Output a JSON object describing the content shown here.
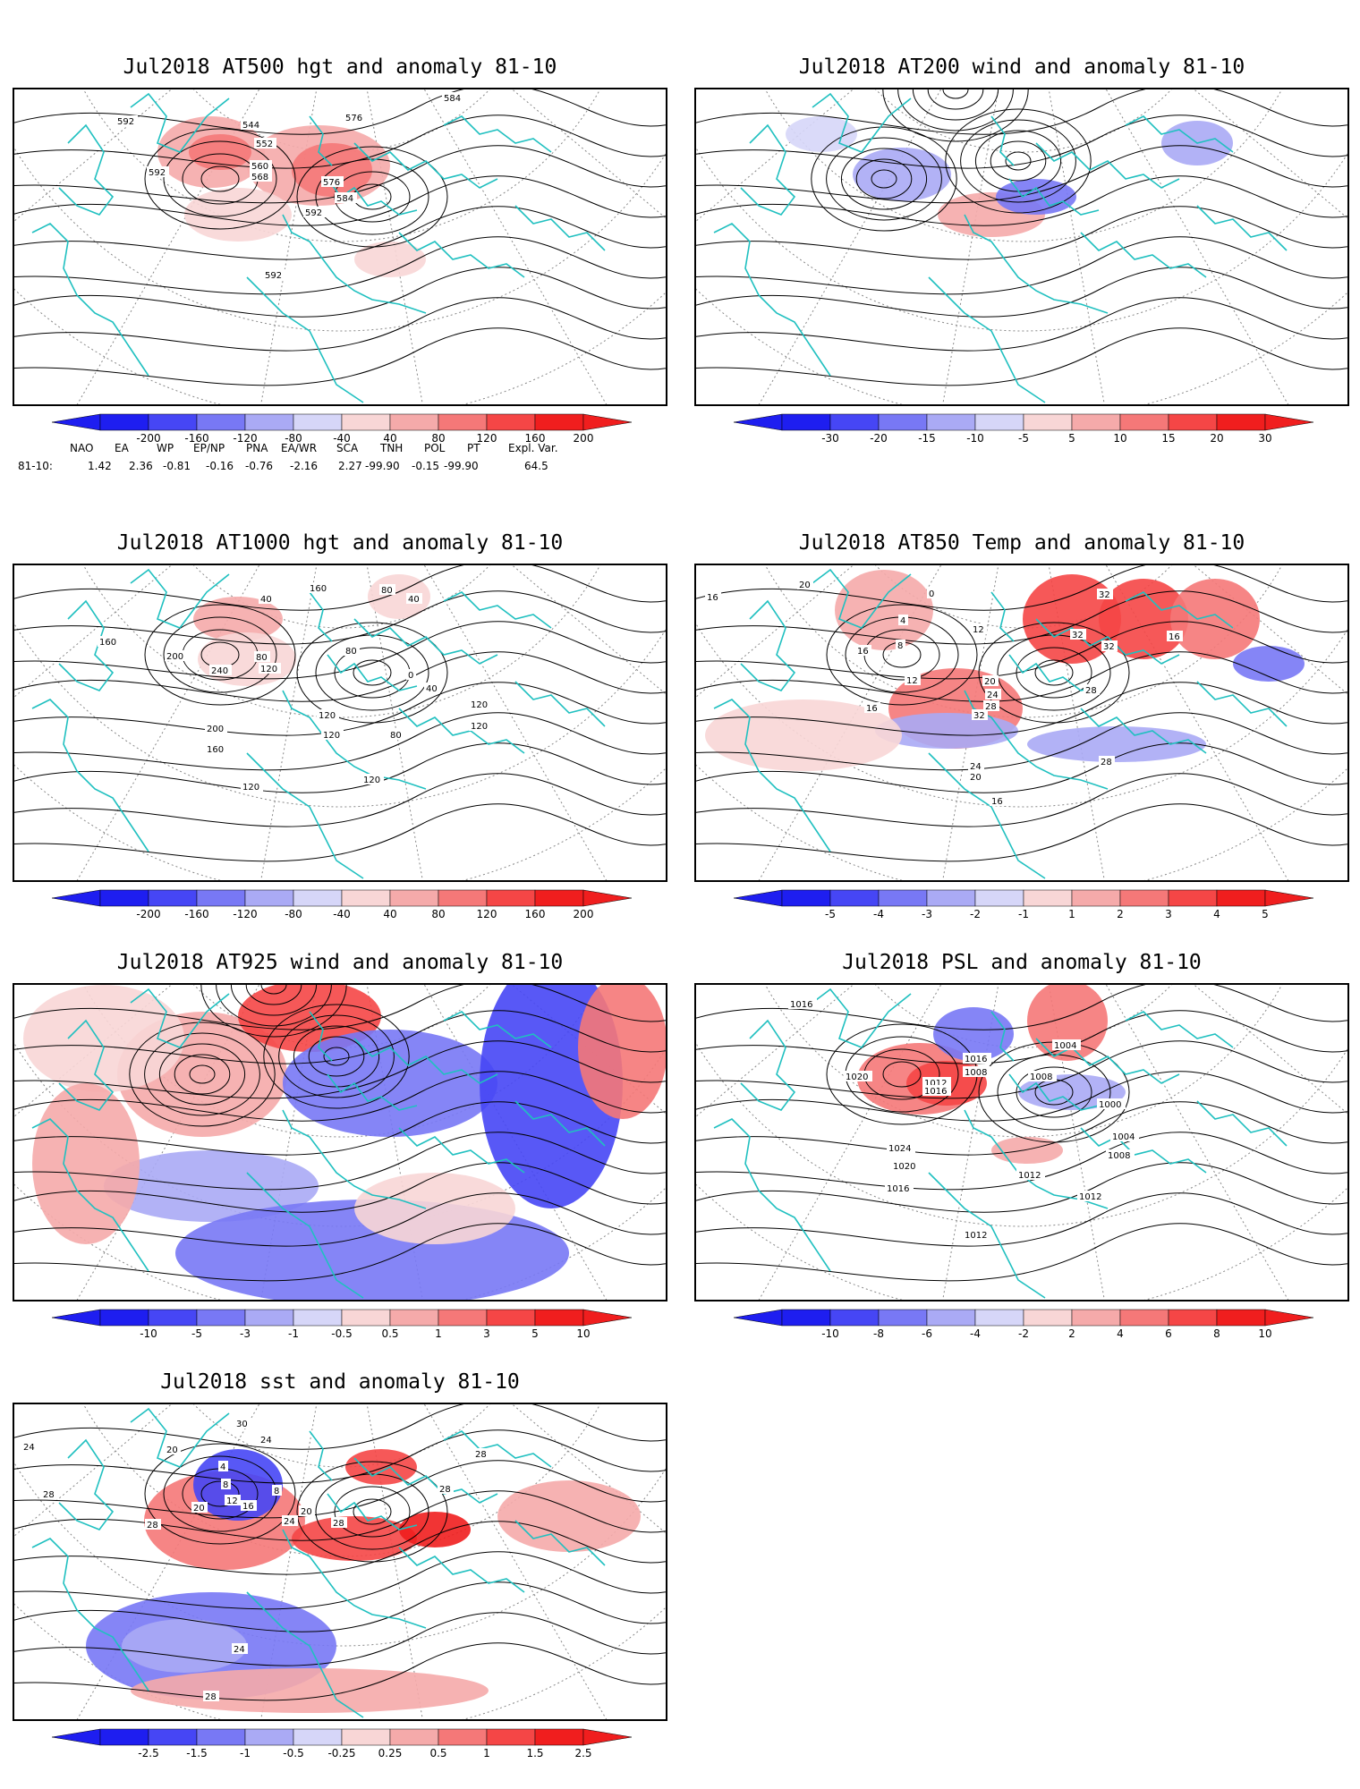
{
  "colors": {
    "coast": "#20c0c0",
    "contour": "#000000",
    "grid": "#888888",
    "scale_neg": [
      "#1e1ef0",
      "#4646f5",
      "#7878f5",
      "#aaaaf5",
      "#d6d6f8"
    ],
    "scale_pos": [
      "#f8d6d6",
      "#f5aaaa",
      "#f57878",
      "#f54646",
      "#f01e1e"
    ]
  },
  "panels": [
    {
      "id": "at500",
      "title": "Jul2018 AT500 hgt and anomaly 81-10",
      "ticks": [
        "-200",
        "-160",
        "-120",
        "-80",
        "-40",
        "40",
        "80",
        "120",
        "160",
        "200"
      ],
      "contour_labels": [
        "584",
        "592",
        "544",
        "576",
        "552",
        "560",
        "568",
        "592",
        "576",
        "584",
        "592",
        "592"
      ]
    },
    {
      "id": "at200",
      "title": "Jul2018 AT200 wind and anomaly 81-10",
      "ticks": [
        "-30",
        "-20",
        "-15",
        "-10",
        "-5",
        "5",
        "10",
        "15",
        "20",
        "30"
      ],
      "contour_labels": []
    },
    {
      "id": "at1000",
      "title": "Jul2018 AT1000 hgt and anomaly 81-10",
      "ticks": [
        "-200",
        "-160",
        "-120",
        "-80",
        "-40",
        "40",
        "80",
        "120",
        "160",
        "200"
      ],
      "contour_labels": [
        "40",
        "160",
        "80",
        "40",
        "160",
        "200",
        "240",
        "80",
        "120",
        "80",
        "0",
        "120",
        "40",
        "120",
        "120",
        "200",
        "120",
        "160",
        "80",
        "120",
        "120"
      ]
    },
    {
      "id": "at850",
      "title": "Jul2018 AT850 Temp and anomaly 81-10",
      "ticks": [
        "-5",
        "-4",
        "-3",
        "-2",
        "-1",
        "1",
        "2",
        "3",
        "4",
        "5"
      ],
      "contour_labels": [
        "16",
        "20",
        "0",
        "32",
        "4",
        "12",
        "8",
        "32",
        "32",
        "16",
        "16",
        "12",
        "20",
        "24",
        "28",
        "28",
        "32",
        "16",
        "24",
        "20",
        "28",
        "16"
      ]
    },
    {
      "id": "at925",
      "title": "Jul2018 AT925 wind and anomaly 81-10",
      "ticks": [
        "-10",
        "-5",
        "-3",
        "-1",
        "-0.5",
        "0.5",
        "1",
        "3",
        "5",
        "10"
      ],
      "contour_labels": []
    },
    {
      "id": "psl",
      "title": "Jul2018 PSL and anomaly 81-10",
      "ticks": [
        "-10",
        "-8",
        "-6",
        "-4",
        "-2",
        "2",
        "4",
        "6",
        "8",
        "10"
      ],
      "contour_labels": [
        "1016",
        "1004",
        "1016",
        "1008",
        "1020",
        "1012",
        "1016",
        "1008",
        "1000",
        "1004",
        "1024",
        "1008",
        "1020",
        "1012",
        "1016",
        "1012",
        "1012"
      ]
    },
    {
      "id": "sst",
      "title": "Jul2018 sst and anomaly 81-10",
      "ticks": [
        "-2.5",
        "-1.5",
        "-1",
        "-0.5",
        "-0.25",
        "0.25",
        "0.5",
        "1",
        "1.5",
        "2.5"
      ],
      "contour_labels": [
        "30",
        "24",
        "28",
        "24",
        "20",
        "4",
        "28",
        "8",
        "28",
        "8",
        "12",
        "16",
        "20",
        "20",
        "28",
        "24",
        "28",
        "24",
        "28"
      ]
    }
  ],
  "indices": {
    "headers": [
      "NAO",
      "EA",
      "WP",
      "EP/NP",
      "PNA",
      "EA/WR",
      "SCA",
      "TNH",
      "POL",
      "PT",
      "Expl. Var."
    ],
    "row_label": "81-10:",
    "values": [
      "1.42",
      "2.36",
      "-0.81",
      "-0.16",
      "-0.76",
      "-2.16",
      "2.27",
      "-99.90",
      "-0.15",
      "-99.90",
      "64.5"
    ]
  }
}
